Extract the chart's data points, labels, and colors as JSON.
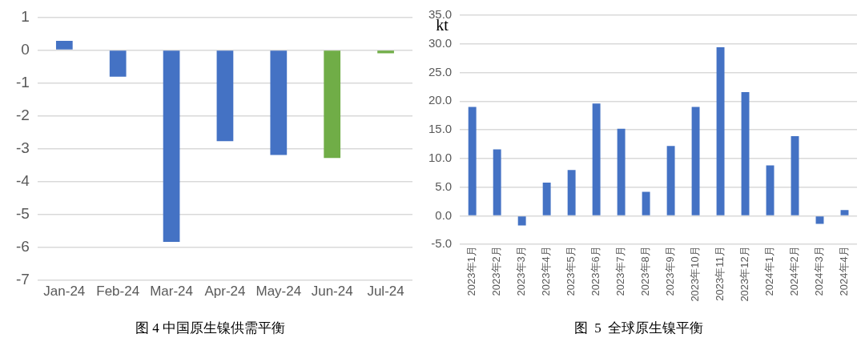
{
  "chart_data": [
    {
      "type": "bar",
      "title": "图 4 中国原生镍供需平衡",
      "categories": [
        "Jan-24",
        "Feb-24",
        "Mar-24",
        "Apr-24",
        "May-24",
        "Jun-24",
        "Jul-24"
      ],
      "values": [
        0.28,
        -0.81,
        -5.83,
        -2.77,
        -3.19,
        -3.28,
        -0.1
      ],
      "colors": [
        "#4472c4",
        "#4472c4",
        "#4472c4",
        "#4472c4",
        "#4472c4",
        "#70ad47",
        "#70ad47"
      ],
      "ylim": [
        -7,
        1
      ],
      "yticks": [
        -7,
        -6,
        -5,
        -4,
        -3,
        -2,
        -1,
        0,
        1
      ],
      "grid": "y"
    },
    {
      "type": "bar",
      "title": "图  5  全球原生镍平衡",
      "ylabel": "kt",
      "categories": [
        "2023年1月",
        "2023年2月",
        "2023年3月",
        "2023年4月",
        "2023年5月",
        "2023年6月",
        "2023年7月",
        "2023年8月",
        "2023年9月",
        "2023年10月",
        "2023年11月",
        "2023年12月",
        "2024年1月",
        "2024年2月",
        "2024年3月",
        "2024年4月"
      ],
      "values": [
        19.0,
        11.6,
        -1.7,
        5.8,
        8.0,
        19.6,
        15.2,
        4.2,
        12.2,
        19.0,
        29.4,
        21.6,
        8.8,
        13.9,
        -1.4,
        1.0
      ],
      "color": "#4472c4",
      "ylim": [
        -5,
        35
      ],
      "yticks": [
        {
          "value": -5,
          "label": "-5.0"
        },
        {
          "value": 0,
          "label": "0.0"
        },
        {
          "value": 5,
          "label": "5.0"
        },
        {
          "value": 10,
          "label": "10.0"
        },
        {
          "value": 15,
          "label": "15.0"
        },
        {
          "value": 20,
          "label": "20.0"
        },
        {
          "value": 25,
          "label": "25.0"
        },
        {
          "value": 30,
          "label": "30.0"
        },
        {
          "value": 35,
          "label": "35.0"
        }
      ],
      "grid": "y"
    }
  ]
}
